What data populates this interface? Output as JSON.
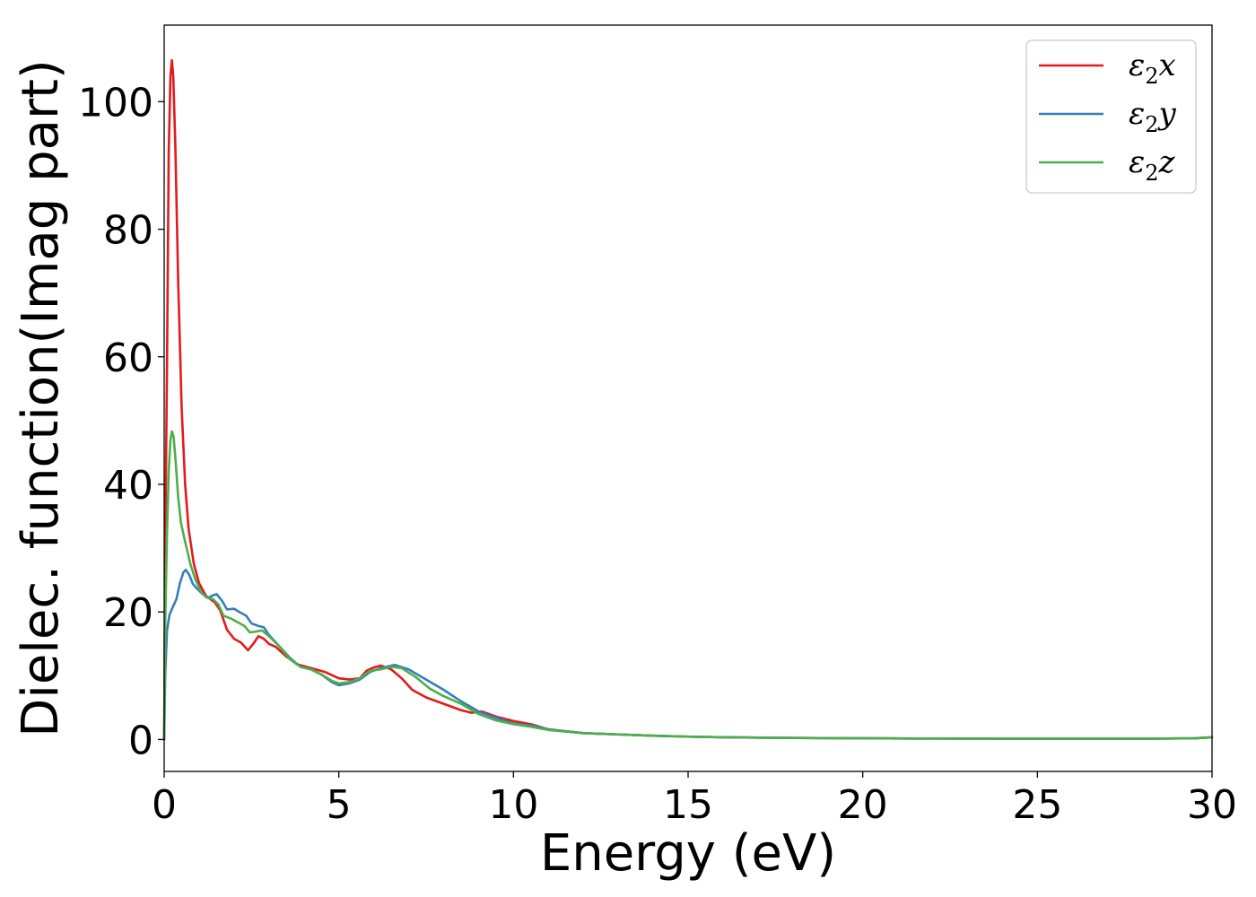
{
  "chart_data": {
    "type": "line",
    "title": "",
    "xlabel": "Energy (eV)",
    "ylabel": "Dielec. function(Imag part)",
    "xlim": [
      0,
      30
    ],
    "ylim": [
      -5,
      112
    ],
    "xticks": [
      0,
      5,
      10,
      15,
      20,
      25,
      30
    ],
    "yticks": [
      0,
      20,
      40,
      60,
      80,
      100
    ],
    "xtick_labels": [
      "0",
      "5",
      "10",
      "15",
      "20",
      "25",
      "30"
    ],
    "ytick_labels": [
      "0",
      "20",
      "40",
      "60",
      "80",
      "100"
    ],
    "grid": false,
    "legend_position": "top-right",
    "series": [
      {
        "name": "ε2x",
        "legend": {
          "base": "ε",
          "sub": "2",
          "tail": "x"
        },
        "color": "#e41a1c",
        "points": [
          [
            0,
            0
          ],
          [
            0.03,
            30
          ],
          [
            0.08,
            58
          ],
          [
            0.13,
            92
          ],
          [
            0.18,
            104
          ],
          [
            0.22,
            106.5
          ],
          [
            0.26,
            104
          ],
          [
            0.32,
            93
          ],
          [
            0.4,
            72
          ],
          [
            0.5,
            52
          ],
          [
            0.6,
            40
          ],
          [
            0.7,
            33
          ],
          [
            0.85,
            27.5
          ],
          [
            1.0,
            24.5
          ],
          [
            1.2,
            22.5
          ],
          [
            1.45,
            21.5
          ],
          [
            1.6,
            20.3
          ],
          [
            1.8,
            17.2
          ],
          [
            2.0,
            15.8
          ],
          [
            2.2,
            15.2
          ],
          [
            2.4,
            14.0
          ],
          [
            2.55,
            15.0
          ],
          [
            2.7,
            16.2
          ],
          [
            2.85,
            15.8
          ],
          [
            3.0,
            15.0
          ],
          [
            3.2,
            14.5
          ],
          [
            3.5,
            13.0
          ],
          [
            3.8,
            11.8
          ],
          [
            4.2,
            11.2
          ],
          [
            4.6,
            10.6
          ],
          [
            5.0,
            9.6
          ],
          [
            5.3,
            9.4
          ],
          [
            5.6,
            9.6
          ],
          [
            5.8,
            10.8
          ],
          [
            6.0,
            11.3
          ],
          [
            6.2,
            11.6
          ],
          [
            6.5,
            11.0
          ],
          [
            6.8,
            9.6
          ],
          [
            7.1,
            7.8
          ],
          [
            7.5,
            6.6
          ],
          [
            8.0,
            5.6
          ],
          [
            8.5,
            4.6
          ],
          [
            8.8,
            4.2
          ],
          [
            9.1,
            4.4
          ],
          [
            9.5,
            3.6
          ],
          [
            10.0,
            2.9
          ],
          [
            10.5,
            2.4
          ],
          [
            11.0,
            1.6
          ],
          [
            12.0,
            1.0
          ],
          [
            13.0,
            0.8
          ],
          [
            14.0,
            0.6
          ],
          [
            15.0,
            0.45
          ],
          [
            16.0,
            0.35
          ],
          [
            18.0,
            0.25
          ],
          [
            20.0,
            0.2
          ],
          [
            22.0,
            0.15
          ],
          [
            25.0,
            0.12
          ],
          [
            28.0,
            0.12
          ],
          [
            29.5,
            0.2
          ],
          [
            30.0,
            0.35
          ]
        ]
      },
      {
        "name": "ε2y",
        "legend": {
          "base": "ε",
          "sub": "2",
          "tail": "y"
        },
        "color": "#377eb8",
        "points": [
          [
            0,
            0
          ],
          [
            0.03,
            10
          ],
          [
            0.08,
            17
          ],
          [
            0.15,
            19.5
          ],
          [
            0.25,
            20.8
          ],
          [
            0.35,
            22
          ],
          [
            0.45,
            24.5
          ],
          [
            0.55,
            26.2
          ],
          [
            0.62,
            26.6
          ],
          [
            0.72,
            25.8
          ],
          [
            0.82,
            24.4
          ],
          [
            0.95,
            23.6
          ],
          [
            1.1,
            22.8
          ],
          [
            1.25,
            22.2
          ],
          [
            1.4,
            22.6
          ],
          [
            1.5,
            22.8
          ],
          [
            1.65,
            21.8
          ],
          [
            1.8,
            20.4
          ],
          [
            2.0,
            20.5
          ],
          [
            2.15,
            20.0
          ],
          [
            2.35,
            19.4
          ],
          [
            2.5,
            18.2
          ],
          [
            2.7,
            17.8
          ],
          [
            2.85,
            17.6
          ],
          [
            3.0,
            16.4
          ],
          [
            3.3,
            14.6
          ],
          [
            3.6,
            12.8
          ],
          [
            3.9,
            11.4
          ],
          [
            4.2,
            11.0
          ],
          [
            4.5,
            10.2
          ],
          [
            4.8,
            9.0
          ],
          [
            5.0,
            8.5
          ],
          [
            5.3,
            8.8
          ],
          [
            5.6,
            9.4
          ],
          [
            5.9,
            10.6
          ],
          [
            6.2,
            11.2
          ],
          [
            6.6,
            11.7
          ],
          [
            7.0,
            11.0
          ],
          [
            7.5,
            9.4
          ],
          [
            8.0,
            7.8
          ],
          [
            8.5,
            6.0
          ],
          [
            9.0,
            4.4
          ],
          [
            9.5,
            3.4
          ],
          [
            10.0,
            2.5
          ],
          [
            10.5,
            2.2
          ],
          [
            11.0,
            1.6
          ],
          [
            12.0,
            1.0
          ],
          [
            13.0,
            0.8
          ],
          [
            14.0,
            0.6
          ],
          [
            15.0,
            0.45
          ],
          [
            16.0,
            0.35
          ],
          [
            18.0,
            0.25
          ],
          [
            20.0,
            0.2
          ],
          [
            22.0,
            0.15
          ],
          [
            25.0,
            0.12
          ],
          [
            28.0,
            0.12
          ],
          [
            29.5,
            0.2
          ],
          [
            30.0,
            0.35
          ]
        ]
      },
      {
        "name": "ε2z",
        "legend": {
          "base": "ε",
          "sub": "2",
          "tail": "z"
        },
        "color": "#4daf4a",
        "points": [
          [
            0,
            0
          ],
          [
            0.03,
            18
          ],
          [
            0.08,
            32
          ],
          [
            0.13,
            42
          ],
          [
            0.18,
            47
          ],
          [
            0.22,
            48.3
          ],
          [
            0.27,
            47.5
          ],
          [
            0.33,
            43.5
          ],
          [
            0.4,
            38
          ],
          [
            0.48,
            34
          ],
          [
            0.6,
            31
          ],
          [
            0.75,
            27.5
          ],
          [
            0.9,
            25.0
          ],
          [
            1.05,
            23.2
          ],
          [
            1.2,
            22.3
          ],
          [
            1.4,
            22.0
          ],
          [
            1.55,
            21.2
          ],
          [
            1.7,
            19.4
          ],
          [
            1.9,
            19.0
          ],
          [
            2.1,
            18.4
          ],
          [
            2.3,
            17.8
          ],
          [
            2.45,
            16.8
          ],
          [
            2.6,
            16.9
          ],
          [
            2.8,
            17.1
          ],
          [
            3.0,
            16.2
          ],
          [
            3.3,
            14.6
          ],
          [
            3.6,
            12.6
          ],
          [
            3.9,
            11.4
          ],
          [
            4.2,
            11.0
          ],
          [
            4.5,
            10.2
          ],
          [
            4.8,
            9.2
          ],
          [
            5.0,
            8.8
          ],
          [
            5.3,
            9.0
          ],
          [
            5.6,
            9.6
          ],
          [
            5.9,
            10.8
          ],
          [
            6.2,
            11.0
          ],
          [
            6.5,
            11.4
          ],
          [
            6.8,
            11.2
          ],
          [
            7.2,
            9.8
          ],
          [
            7.6,
            8.0
          ],
          [
            8.0,
            6.8
          ],
          [
            8.5,
            5.6
          ],
          [
            9.0,
            4.0
          ],
          [
            9.5,
            3.0
          ],
          [
            10.0,
            2.4
          ],
          [
            10.5,
            2.0
          ],
          [
            11.0,
            1.5
          ],
          [
            12.0,
            1.0
          ],
          [
            13.0,
            0.8
          ],
          [
            14.0,
            0.6
          ],
          [
            15.0,
            0.45
          ],
          [
            16.0,
            0.35
          ],
          [
            18.0,
            0.25
          ],
          [
            20.0,
            0.2
          ],
          [
            22.0,
            0.15
          ],
          [
            25.0,
            0.12
          ],
          [
            28.0,
            0.12
          ],
          [
            29.5,
            0.2
          ],
          [
            30.0,
            0.35
          ]
        ]
      }
    ]
  }
}
